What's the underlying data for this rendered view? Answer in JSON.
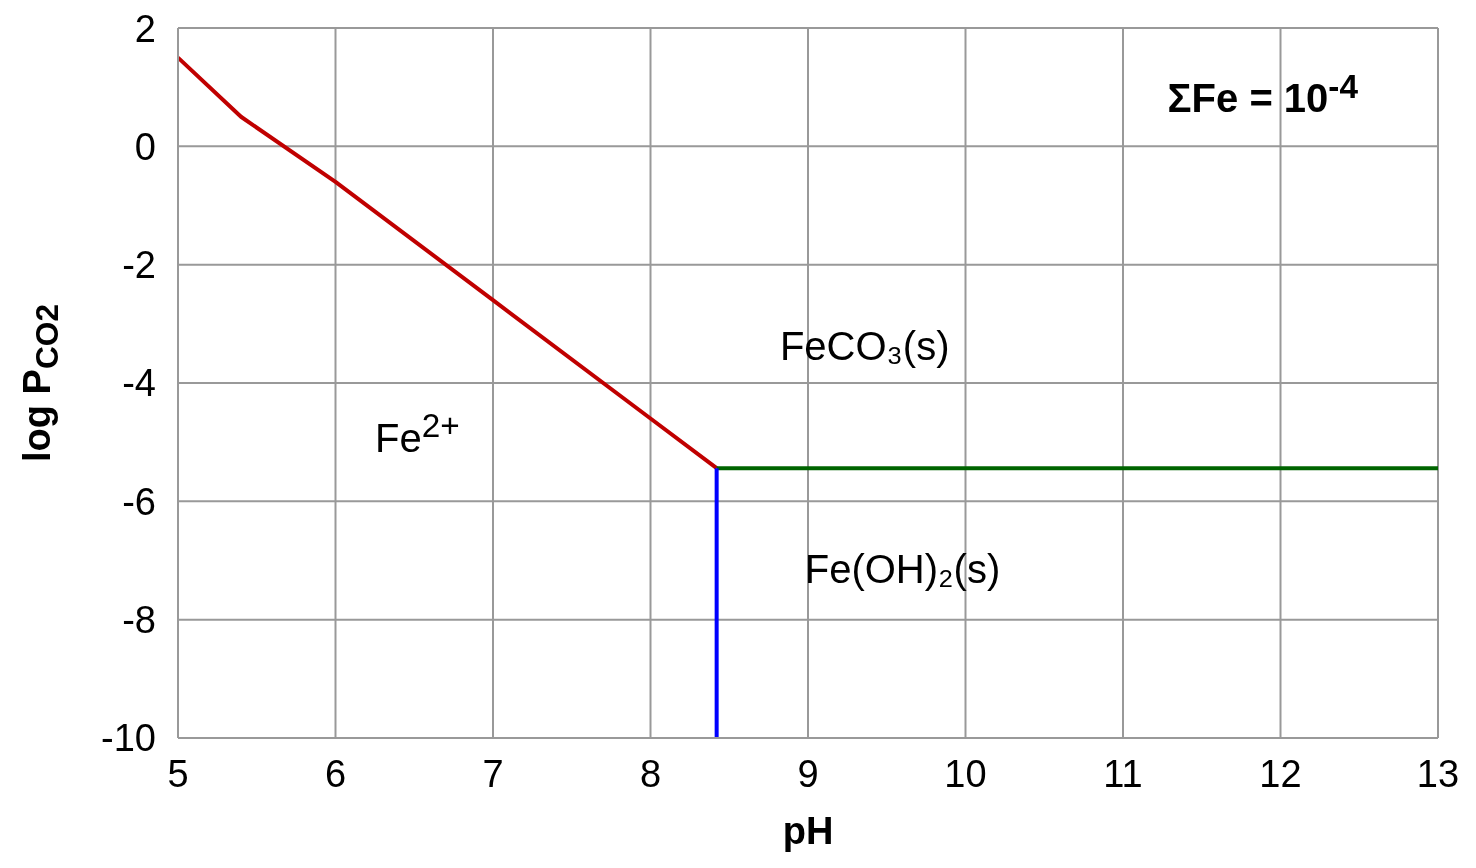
{
  "chart_data": {
    "type": "line",
    "xlabel": "pH",
    "ylabel": "log P$_{CO2}$",
    "xlim": [
      5,
      13
    ],
    "xticks": [
      5,
      6,
      7,
      8,
      9,
      10,
      11,
      12,
      13
    ],
    "ylim": [
      -10,
      2
    ],
    "yticks": [
      -10,
      -8,
      -6,
      -4,
      -2,
      0,
      2
    ],
    "grid": true,
    "line_style": "solid",
    "series": [
      {
        "color": "#c00000",
        "x": [
          5,
          5.4,
          6,
          7,
          8,
          8.42
        ],
        "values": [
          1.5,
          0.5,
          -0.6,
          -2.6,
          -4.6,
          -5.44
        ]
      },
      {
        "color": "#006400",
        "x": [
          8.42,
          13
        ],
        "values": [
          -5.44,
          -5.44
        ]
      },
      {
        "color": "#0000ff",
        "x": [
          8.42,
          8.42
        ],
        "values": [
          -5.44,
          -10
        ]
      }
    ],
    "annotations": [
      "ΣFe = 10$^{-4}$",
      "Fe$^{2+}$",
      "FeCO₃(s)",
      "Fe(OH)₂(s)"
    ]
  }
}
